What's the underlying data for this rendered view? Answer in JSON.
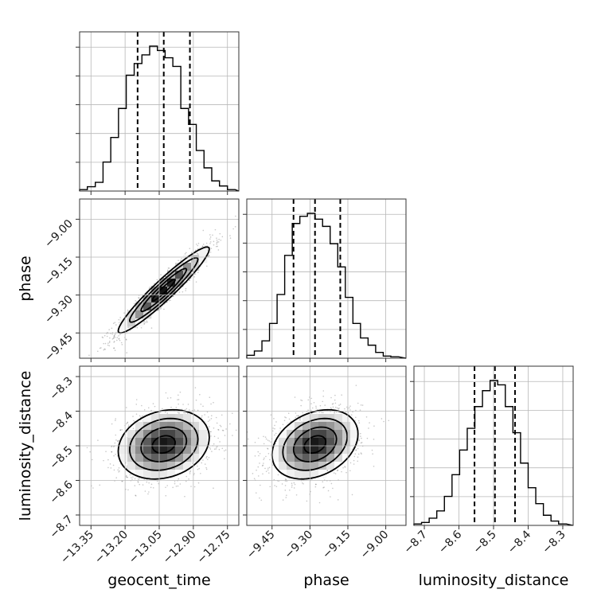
{
  "chart_data": {
    "type": "corner",
    "parameters": [
      {
        "name": "geocent_time",
        "label": "geocent_time",
        "range": [
          -13.4,
          -12.7
        ],
        "ticks": [
          -13.35,
          -13.2,
          -13.05,
          -12.9,
          -12.75
        ],
        "tick_labels": [
          "−13.35",
          "−13.20",
          "−13.05",
          "−12.90",
          "−12.75"
        ],
        "quantiles": [
          -13.145,
          -13.03,
          -12.915
        ],
        "hist_bins": [
          -13.4,
          -13.366,
          -13.331,
          -13.297,
          -13.263,
          -13.229,
          -13.195,
          -13.16,
          -13.126,
          -13.092,
          -13.058,
          -13.024,
          -12.99,
          -12.955,
          -12.921,
          -12.887,
          -12.853,
          -12.819,
          -12.785,
          -12.75,
          -12.716,
          -12.7
        ],
        "hist_counts": [
          0.01,
          0.03,
          0.06,
          0.2,
          0.37,
          0.57,
          0.8,
          0.88,
          0.94,
          1.0,
          0.97,
          0.92,
          0.86,
          0.57,
          0.46,
          0.28,
          0.16,
          0.07,
          0.035,
          0.01
        ]
      },
      {
        "name": "phase",
        "label": "phase",
        "range": [
          -9.55,
          -8.92
        ],
        "ticks": [
          -9.45,
          -9.3,
          -9.15,
          -9.0
        ],
        "tick_labels": [
          "−9.45",
          "−9.30",
          "−9.15",
          "−9.00"
        ],
        "quantiles": [
          -9.365,
          -9.28,
          -9.18
        ],
        "hist_bins": [
          -9.55,
          -9.52,
          -9.49,
          -9.46,
          -9.43,
          -9.4,
          -9.37,
          -9.34,
          -9.31,
          -9.28,
          -9.25,
          -9.22,
          -9.19,
          -9.16,
          -9.13,
          -9.1,
          -9.07,
          -9.04,
          -9.01,
          -8.98,
          -8.95,
          -8.92
        ],
        "hist_counts": [
          0.02,
          0.05,
          0.12,
          0.24,
          0.44,
          0.71,
          0.93,
          0.98,
          1.0,
          0.96,
          0.91,
          0.79,
          0.63,
          0.42,
          0.24,
          0.14,
          0.09,
          0.04,
          0.015,
          0.01
        ]
      },
      {
        "name": "luminosity_distance",
        "label": "luminosity_distance",
        "range": [
          -8.73,
          -8.27
        ],
        "ticks": [
          -8.7,
          -8.6,
          -8.5,
          -8.4,
          -8.3
        ],
        "tick_labels": [
          "−8.7",
          "−8.6",
          "−8.5",
          "−8.4",
          "−8.3"
        ],
        "quantiles": [
          -8.555,
          -8.496,
          -8.438
        ],
        "hist_bins": [
          -8.73,
          -8.708,
          -8.686,
          -8.664,
          -8.642,
          -8.62,
          -8.598,
          -8.576,
          -8.554,
          -8.532,
          -8.51,
          -8.488,
          -8.466,
          -8.444,
          -8.422,
          -8.4,
          -8.378,
          -8.356,
          -8.334,
          -8.312,
          -8.29,
          -8.27
        ],
        "hist_counts": [
          0.01,
          0.02,
          0.05,
          0.1,
          0.2,
          0.35,
          0.52,
          0.67,
          0.82,
          0.93,
          1.0,
          0.97,
          0.82,
          0.64,
          0.43,
          0.26,
          0.15,
          0.07,
          0.03,
          0.01
        ]
      }
    ],
    "pairs": [
      {
        "x": "geocent_time",
        "y": "phase",
        "center": [
          -13.03,
          -9.28
        ],
        "sd": [
          0.1,
          0.085
        ],
        "correlation": 0.95
      },
      {
        "x": "geocent_time",
        "y": "luminosity_distance",
        "center": [
          -13.03,
          -8.496
        ],
        "sd": [
          0.1,
          0.05
        ],
        "correlation": 0.2
      },
      {
        "x": "phase",
        "y": "luminosity_distance",
        "center": [
          -9.28,
          -8.496
        ],
        "sd": [
          0.085,
          0.05
        ],
        "correlation": 0.3
      }
    ],
    "contour_levels": [
      0.118,
      0.393,
      0.675,
      0.865
    ],
    "grid": true
  }
}
